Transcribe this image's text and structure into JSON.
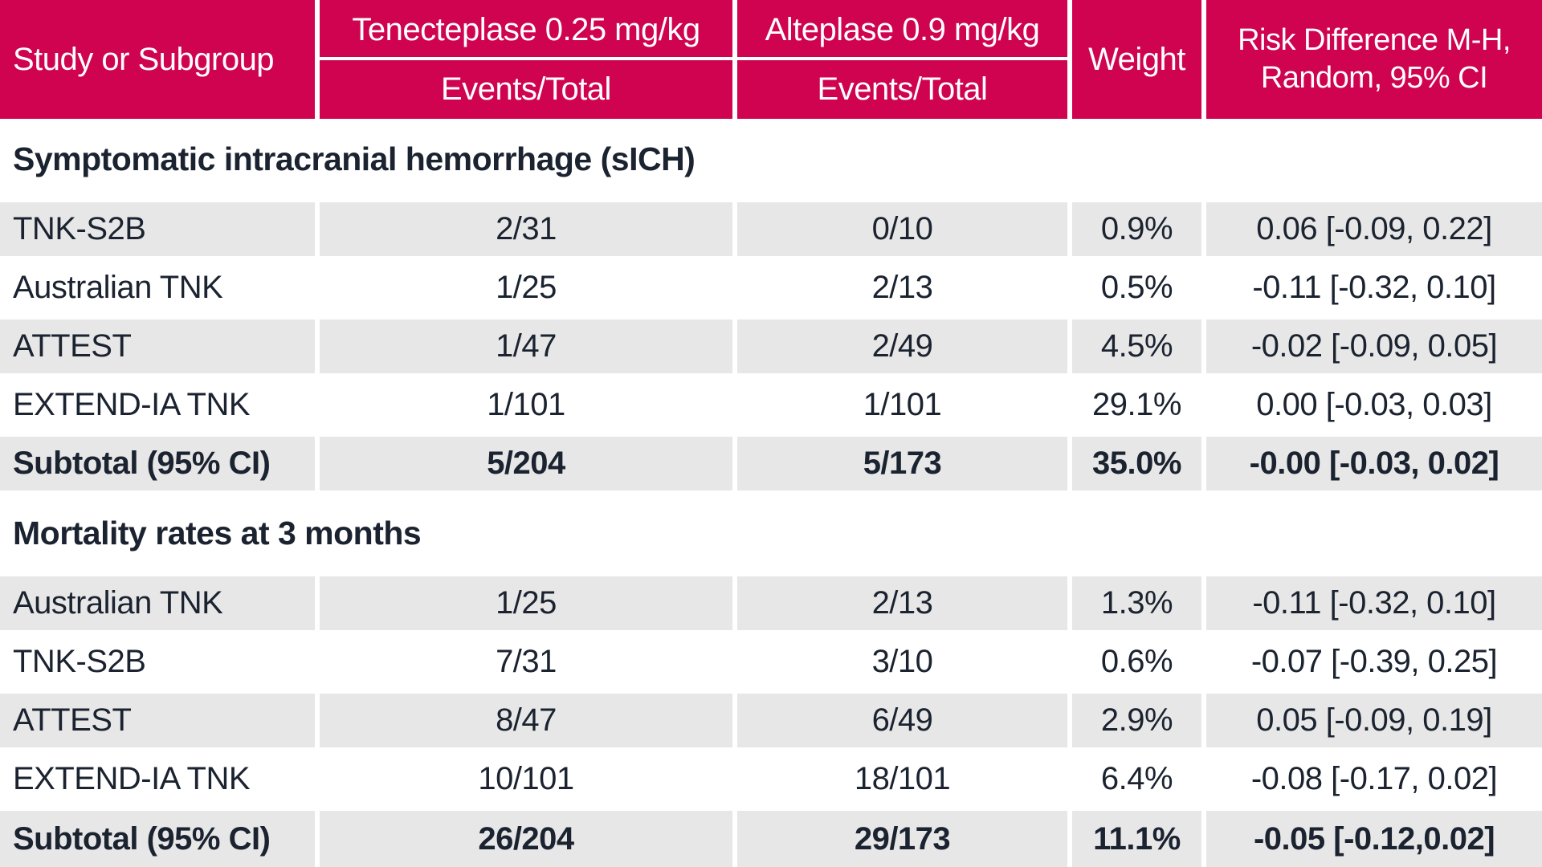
{
  "chart_data": {
    "type": "table",
    "columns": {
      "study": "Study or Subgroup",
      "group1": "Tenecteplase 0.25 mg/kg",
      "group1_sub": "Events/Total",
      "group2": "Alteplase 0.9 mg/kg",
      "group2_sub": "Events/Total",
      "weight": "Weight",
      "risk_line1": "Risk Difference M-H,",
      "risk_line2": "Random, 95% CI"
    },
    "sections": [
      {
        "title": "Symptomatic intracranial hemorrhage (sICH)",
        "rows": [
          {
            "study": "TNK-S2B",
            "tnk": "2/31",
            "alt": "0/10",
            "weight": "0.9%",
            "ci": "0.06 [-0.09, 0.22]"
          },
          {
            "study": "Australian TNK",
            "tnk": "1/25",
            "alt": "2/13",
            "weight": "0.5%",
            "ci": "-0.11 [-0.32, 0.10]"
          },
          {
            "study": "ATTEST",
            "tnk": "1/47",
            "alt": "2/49",
            "weight": "4.5%",
            "ci": "-0.02 [-0.09, 0.05]"
          },
          {
            "study": "EXTEND-IA TNK",
            "tnk": "1/101",
            "alt": "1/101",
            "weight": "29.1%",
            "ci": "0.00 [-0.03, 0.03]"
          },
          {
            "study": "Subtotal (95% CI)",
            "tnk": "5/204",
            "alt": "5/173",
            "weight": "35.0%",
            "ci": "-0.00 [-0.03, 0.02]",
            "bold": true
          }
        ]
      },
      {
        "title": "Mortality rates at 3 months",
        "rows": [
          {
            "study": "Australian TNK",
            "tnk": "1/25",
            "alt": "2/13",
            "weight": "1.3%",
            "ci": "-0.11 [-0.32, 0.10]"
          },
          {
            "study": "TNK-S2B",
            "tnk": "7/31",
            "alt": "3/10",
            "weight": "0.6%",
            "ci": "-0.07 [-0.39, 0.25]"
          },
          {
            "study": "ATTEST",
            "tnk": "8/47",
            "alt": "6/49",
            "weight": "2.9%",
            "ci": "0.05 [-0.09, 0.19]"
          },
          {
            "study": "EXTEND-IA TNK",
            "tnk": "10/101",
            "alt": "18/101",
            "weight": "6.4%",
            "ci": "-0.08 [-0.17, 0.02]"
          },
          {
            "study": "Subtotal (95% CI)",
            "tnk": "26/204",
            "alt": "29/173",
            "weight": "11.1%",
            "ci": "-0.05 [-0.12,0.02]",
            "bold": true
          }
        ]
      }
    ]
  },
  "colors": {
    "accent": "#CF0350",
    "row_stripe": "#E7E7E7",
    "text": "#1B2330",
    "header_text": "#FFFFFF"
  }
}
